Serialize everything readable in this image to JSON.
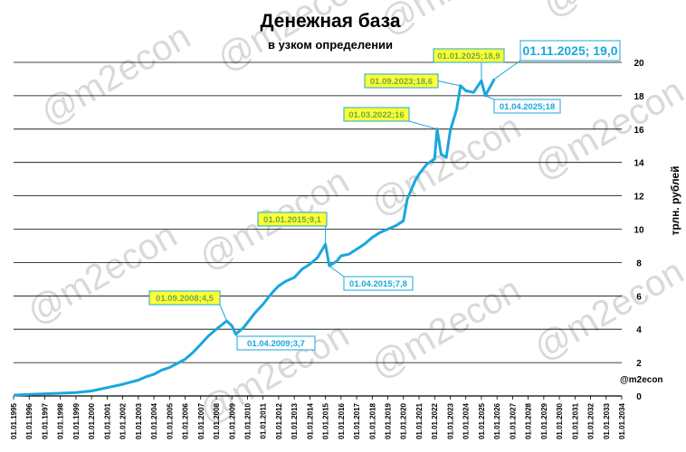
{
  "chart_data": {
    "type": "line",
    "title": "Денежная база",
    "subtitle": "в узком определении",
    "ylabel": "трлн. рублей",
    "watermark": "@m2econ",
    "credit": "@m2econ",
    "ylim": [
      0,
      20
    ],
    "y_ticks": [
      "0",
      "2",
      "4",
      "6",
      "8",
      "10",
      "12",
      "14",
      "16",
      "18",
      "20"
    ],
    "x_ticks": [
      "01.01.1995",
      "01.01.1996",
      "01.01.1997",
      "01.01.1998",
      "01.01.1999",
      "01.01.2000",
      "01.01.2001",
      "01.01.2002",
      "01.01.2003",
      "01.01.2004",
      "01.01.2005",
      "01.01.2006",
      "01.01.2007",
      "01.01.2008",
      "01.01.2009",
      "01.01.2010",
      "01.01.2011",
      "01.01.2012",
      "01.01.2013",
      "01.01.2014",
      "01.01.2015",
      "01.01.2016",
      "01.01.2017",
      "01.01.2018",
      "01.01.2019",
      "01.01.2020",
      "01.01.2021",
      "01.01.2022",
      "01.01.2023",
      "01.01.2024",
      "01.01.2025",
      "01.01.2026",
      "01.01.2027",
      "01.01.2028",
      "01.01.2029",
      "01.01.2030",
      "01.01.2031",
      "01.01.2032",
      "01.01.2033",
      "01.01.2034"
    ],
    "grid": true,
    "colors": {
      "line": "#1aa7dc",
      "axis": "#000000",
      "grid": "#000000",
      "highlight_fill": "#ffff33",
      "highlight_text": "#6aa84f",
      "callout_text": "#1aa7dc"
    },
    "series": [
      {
        "points": [
          [
            "1995-01-01",
            0.05
          ],
          [
            "1996-01-01",
            0.1
          ],
          [
            "1997-01-01",
            0.13
          ],
          [
            "1998-01-01",
            0.16
          ],
          [
            "1999-01-01",
            0.2
          ],
          [
            "2000-01-01",
            0.3
          ],
          [
            "2001-01-01",
            0.5
          ],
          [
            "2002-01-01",
            0.7
          ],
          [
            "2003-01-01",
            0.95
          ],
          [
            "2003-07-01",
            1.15
          ],
          [
            "2004-01-01",
            1.3
          ],
          [
            "2004-07-01",
            1.55
          ],
          [
            "2005-01-01",
            1.7
          ],
          [
            "2005-07-01",
            1.95
          ],
          [
            "2006-01-01",
            2.2
          ],
          [
            "2006-07-01",
            2.6
          ],
          [
            "2007-01-01",
            3.1
          ],
          [
            "2007-07-01",
            3.6
          ],
          [
            "2008-01-01",
            4.0
          ],
          [
            "2008-09-01",
            4.5
          ],
          [
            "2009-01-01",
            4.2
          ],
          [
            "2009-04-01",
            3.7
          ],
          [
            "2009-10-01",
            4.1
          ],
          [
            "2010-01-01",
            4.4
          ],
          [
            "2010-07-01",
            5.0
          ],
          [
            "2011-01-01",
            5.5
          ],
          [
            "2011-07-01",
            6.1
          ],
          [
            "2012-01-01",
            6.6
          ],
          [
            "2012-07-01",
            6.9
          ],
          [
            "2013-01-01",
            7.1
          ],
          [
            "2013-07-01",
            7.6
          ],
          [
            "2014-01-01",
            7.9
          ],
          [
            "2014-07-01",
            8.3
          ],
          [
            "2015-01-01",
            9.1
          ],
          [
            "2015-04-01",
            7.8
          ],
          [
            "2015-10-01",
            8.1
          ],
          [
            "2016-01-01",
            8.4
          ],
          [
            "2016-07-01",
            8.5
          ],
          [
            "2017-01-01",
            8.8
          ],
          [
            "2017-07-01",
            9.1
          ],
          [
            "2018-01-01",
            9.5
          ],
          [
            "2018-07-01",
            9.8
          ],
          [
            "2019-01-01",
            10.0
          ],
          [
            "2019-07-01",
            10.2
          ],
          [
            "2020-01-01",
            10.5
          ],
          [
            "2020-04-01",
            11.8
          ],
          [
            "2020-10-01",
            12.9
          ],
          [
            "2021-01-01",
            13.3
          ],
          [
            "2021-07-01",
            13.9
          ],
          [
            "2022-01-01",
            14.2
          ],
          [
            "2022-03-01",
            16.0
          ],
          [
            "2022-06-01",
            14.5
          ],
          [
            "2022-10-01",
            14.3
          ],
          [
            "2023-01-01",
            15.9
          ],
          [
            "2023-06-01",
            17.2
          ],
          [
            "2023-09-01",
            18.6
          ],
          [
            "2024-01-01",
            18.3
          ],
          [
            "2024-07-01",
            18.2
          ],
          [
            "2025-01-01",
            18.9
          ],
          [
            "2025-04-01",
            18.0
          ],
          [
            "2025-11-01",
            19.0
          ]
        ]
      }
    ],
    "annotations": [
      {
        "text": "01.09.2008;4,5",
        "date": "2008-09-01",
        "value": 4.5,
        "style": "highlight"
      },
      {
        "text": "01.04.2009;3,7",
        "date": "2009-04-01",
        "value": 3.7,
        "style": "callout"
      },
      {
        "text": "01.01.2015;9,1",
        "date": "2015-01-01",
        "value": 9.1,
        "style": "highlight"
      },
      {
        "text": "01.04.2015;7,8",
        "date": "2015-04-01",
        "value": 7.8,
        "style": "callout"
      },
      {
        "text": "01.03.2022;16",
        "date": "2022-03-01",
        "value": 16.0,
        "style": "highlight"
      },
      {
        "text": "01.09.2023;18,6",
        "date": "2023-09-01",
        "value": 18.6,
        "style": "highlight"
      },
      {
        "text": "01.01.2025;18,9",
        "date": "2025-01-01",
        "value": 18.9,
        "style": "highlight"
      },
      {
        "text": "01.04.2025;18",
        "date": "2025-04-01",
        "value": 18.0,
        "style": "callout"
      },
      {
        "text": "01.11.2025; 19,0",
        "date": "2025-11-01",
        "value": 19.0,
        "style": "callout-large"
      }
    ]
  }
}
